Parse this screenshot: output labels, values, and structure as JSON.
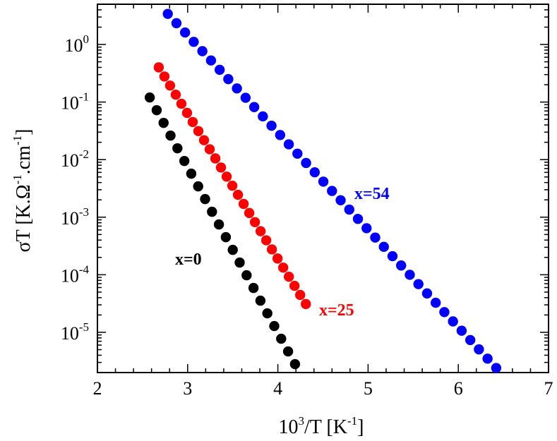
{
  "chart_data": {
    "type": "scatter",
    "title": "",
    "xlabel": "10³/T [K⁻¹]",
    "xlabel_parts": {
      "base": "10",
      "exp": "3",
      "rest": "/T [K",
      "unit_exp": "-1",
      "close": "]"
    },
    "ylabel": "σT [K.Ω⁻¹.cm⁻¹]",
    "ylabel_parts": {
      "a": "σT [K.Ω",
      "exp1": "-1",
      "b": ".cm",
      "exp2": "-1",
      "c": "]"
    },
    "xlim": [
      2,
      7
    ],
    "ylim": [
      2e-06,
      5.0
    ],
    "yscale": "log",
    "xticks": [
      2,
      3,
      4,
      5,
      6,
      7
    ],
    "xtick_labels": [
      "2",
      "3",
      "4",
      "5",
      "6",
      "7"
    ],
    "yticks": [
      {
        "value": 1.0,
        "base": "10",
        "exp": "0"
      },
      {
        "value": 0.1,
        "base": "10",
        "exp": "-1"
      },
      {
        "value": 0.01,
        "base": "10",
        "exp": "-2"
      },
      {
        "value": 0.001,
        "base": "10",
        "exp": "-3"
      },
      {
        "value": 0.0001,
        "base": "10",
        "exp": "-4"
      },
      {
        "value": 1e-05,
        "base": "10",
        "exp": "-5"
      }
    ],
    "grid": false,
    "series": [
      {
        "name": "x=0",
        "color": "#000000",
        "x_start": 2.58,
        "x_end": 4.19,
        "count": 22,
        "y_start": 0.12,
        "y_end": 2.8e-06
      },
      {
        "name": "x=25",
        "color": "#ff0000",
        "x_start": 2.68,
        "x_end": 4.31,
        "count": 27,
        "y_start": 0.4,
        "y_end": 3.1e-05
      },
      {
        "name": "x=54",
        "color": "#0000ff",
        "x_start": 2.78,
        "x_end": 6.42,
        "count": 39,
        "y_start": 3.4,
        "y_end": 2.4e-06
      }
    ]
  }
}
